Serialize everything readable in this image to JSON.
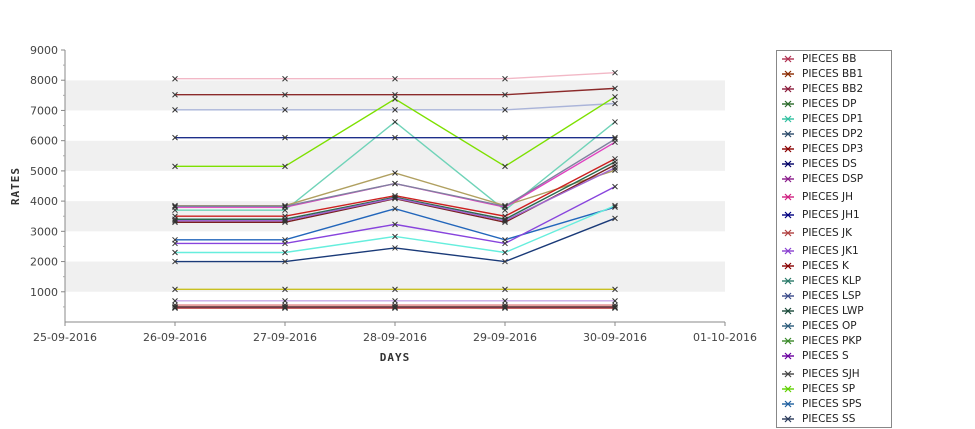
{
  "chart_data": {
    "type": "line",
    "xlabel": "DAYS",
    "ylabel": "RATES",
    "x_ticks": [
      "25-09-2016",
      "26-09-2016",
      "27-09-2016",
      "28-09-2016",
      "29-09-2016",
      "30-09-2016",
      "01-10-2016"
    ],
    "x": [
      "26-09-2016",
      "27-09-2016",
      "28-09-2016",
      "29-09-2016",
      "30-09-2016"
    ],
    "ylim": [
      0,
      9000
    ],
    "y_ticks": [
      1000,
      2000,
      3000,
      4000,
      5000,
      6000,
      7000,
      8000,
      9000
    ],
    "grid": "alternating horizontal bands",
    "legend_position": "right",
    "series": [
      {
        "name": "PIECES BB",
        "color": "#f2b8c6",
        "values": [
          8050,
          8050,
          8050,
          8050,
          8250
        ]
      },
      {
        "name": "PIECES BB1",
        "color": "#8b2a2a",
        "values": [
          7520,
          7520,
          7520,
          7520,
          7730
        ]
      },
      {
        "name": "PIECES BB2",
        "color": "#aab4d9",
        "values": [
          7020,
          7020,
          7020,
          7020,
          7230
        ]
      },
      {
        "name": "PIECES DP",
        "color": "#7de000",
        "values": [
          5150,
          5150,
          7380,
          5150,
          7450
        ]
      },
      {
        "name": "PIECES DP1",
        "color": "#6fd3b8",
        "values": [
          3700,
          3700,
          6620,
          3700,
          6620
        ]
      },
      {
        "name": "PIECES DP2",
        "color": "#1e2f8a",
        "values": [
          6100,
          6100,
          6100,
          6100,
          6100
        ]
      },
      {
        "name": "PIECES DP3",
        "color": "#b0a060",
        "values": [
          3850,
          3850,
          4930,
          3850,
          5020
        ]
      },
      {
        "name": "PIECES DS",
        "color": "#e040c0",
        "values": [
          3800,
          3800,
          4580,
          3800,
          5950
        ]
      },
      {
        "name": "PIECES DSP",
        "color": "#8080a0",
        "values": [
          3830,
          3830,
          4580,
          3830,
          6050
        ]
      },
      {
        "name": "PIECES JH",
        "color": "#cc2020",
        "values": [
          3500,
          3500,
          4180,
          3500,
          5400
        ]
      },
      {
        "name": "PIECES JH1",
        "color": "#2a6a50",
        "values": [
          3400,
          3400,
          4130,
          3400,
          5300
        ]
      },
      {
        "name": "PIECES JK",
        "color": "#7a2020",
        "values": [
          3300,
          3300,
          4080,
          3300,
          5200
        ]
      },
      {
        "name": "PIECES JK1",
        "color": "#a066d0",
        "values": [
          3350,
          3350,
          4100,
          3350,
          5100
        ]
      },
      {
        "name": "PIECES K",
        "color": "#2266bb",
        "values": [
          2720,
          2720,
          3750,
          2720,
          3800
        ]
      },
      {
        "name": "PIECES KLP",
        "color": "#66eedd",
        "values": [
          2300,
          2300,
          2830,
          2300,
          3850
        ]
      },
      {
        "name": "PIECES LSP",
        "color": "#1a3a78",
        "values": [
          2000,
          2000,
          2450,
          2000,
          3430
        ]
      },
      {
        "name": "PIECES LWP",
        "color": "#8844dd",
        "values": [
          2600,
          2600,
          3230,
          2600,
          4480
        ]
      },
      {
        "name": "PIECES OP",
        "color": "#c8c020",
        "values": [
          1080,
          1080,
          1080,
          1080,
          1080
        ]
      },
      {
        "name": "PIECES PKP",
        "color": "#c8a8e8",
        "values": [
          700,
          700,
          700,
          700,
          700
        ]
      },
      {
        "name": "PIECES S",
        "color": "#e08080",
        "values": [
          560,
          560,
          560,
          560,
          560
        ]
      },
      {
        "name": "PIECES SJH",
        "color": "#2a2a2a",
        "values": [
          500,
          500,
          500,
          500,
          500
        ]
      },
      {
        "name": "PIECES SP",
        "color": "#990000",
        "values": [
          480,
          480,
          480,
          480,
          480
        ]
      },
      {
        "name": "PIECES SPS",
        "color": "#005599",
        "values": [
          470,
          470,
          470,
          470,
          470
        ]
      },
      {
        "name": "PIECES SS",
        "color": "#b03030",
        "values": [
          460,
          460,
          460,
          460,
          460
        ]
      }
    ],
    "legend_markers": [
      {
        "name": "PIECES BB",
        "color": "#b03050"
      },
      {
        "name": "PIECES BB1",
        "color": "#8b2a00"
      },
      {
        "name": "PIECES BB2",
        "color": "#8b1a3a"
      },
      {
        "name": "PIECES DP",
        "color": "#2a6a2a"
      },
      {
        "name": "PIECES DP1",
        "color": "#30c0a0"
      },
      {
        "name": "PIECES DP2",
        "color": "#2a4a6a"
      },
      {
        "name": "PIECES DP3",
        "color": "#8a0000"
      },
      {
        "name": "PIECES DS",
        "color": "#000066"
      },
      {
        "name": "PIECES DSP",
        "color": "#8a1a8a"
      },
      {
        "name": "PIECES JH",
        "color": "#d02080"
      },
      {
        "name": "PIECES JH1",
        "color": "#000080"
      },
      {
        "name": "PIECES JK",
        "color": "#b04040"
      },
      {
        "name": "PIECES JK1",
        "color": "#8a40d0"
      },
      {
        "name": "PIECES K",
        "color": "#8a0000"
      },
      {
        "name": "PIECES KLP",
        "color": "#2a7a6a"
      },
      {
        "name": "PIECES LSP",
        "color": "#3a4a8a"
      },
      {
        "name": "PIECES LWP",
        "color": "#1a4a3a"
      },
      {
        "name": "PIECES OP",
        "color": "#2a5a7a"
      },
      {
        "name": "PIECES PKP",
        "color": "#3a8a2a"
      },
      {
        "name": "PIECES S",
        "color": "#6a00a0"
      },
      {
        "name": "PIECES SJH",
        "color": "#444444"
      },
      {
        "name": "PIECES SP",
        "color": "#60d000"
      },
      {
        "name": "PIECES SPS",
        "color": "#2060a0"
      },
      {
        "name": "PIECES SS",
        "color": "#2a3a5a"
      }
    ]
  }
}
